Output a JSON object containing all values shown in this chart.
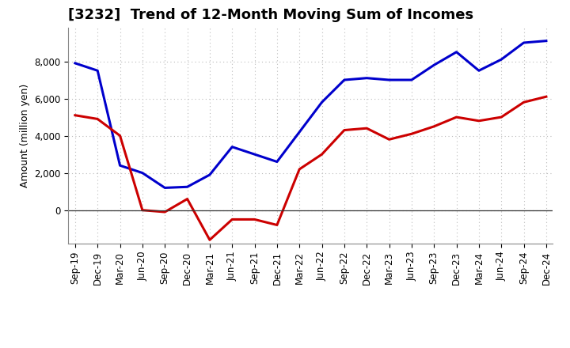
{
  "title": "[3232]  Trend of 12-Month Moving Sum of Incomes",
  "ylabel": "Amount (million yen)",
  "x_labels": [
    "Sep-19",
    "Dec-19",
    "Mar-20",
    "Jun-20",
    "Sep-20",
    "Dec-20",
    "Mar-21",
    "Jun-21",
    "Sep-21",
    "Dec-21",
    "Mar-22",
    "Jun-22",
    "Sep-22",
    "Dec-22",
    "Mar-23",
    "Jun-23",
    "Sep-23",
    "Dec-23",
    "Mar-24",
    "Jun-24",
    "Sep-24",
    "Dec-24"
  ],
  "ordinary_income": [
    7900,
    7500,
    2400,
    2000,
    1200,
    1250,
    1900,
    3400,
    3000,
    2600,
    4200,
    5800,
    7000,
    7100,
    7000,
    7000,
    7800,
    8500,
    7500,
    8100,
    9000,
    9100
  ],
  "net_income": [
    5100,
    4900,
    4000,
    0,
    -100,
    600,
    -1600,
    -500,
    -500,
    -800,
    2200,
    3000,
    4300,
    4400,
    3800,
    4100,
    4500,
    5000,
    4800,
    5000,
    5800,
    6100
  ],
  "ordinary_color": "#0000cc",
  "net_color": "#cc0000",
  "ylim_min": -1800,
  "ylim_max": 9800,
  "yticks": [
    0,
    2000,
    4000,
    6000,
    8000
  ],
  "grid_color": "#bbbbbb",
  "bg_color": "#ffffff",
  "plot_bg_color": "#f0f0f0",
  "line_width": 2.2,
  "title_fontsize": 13,
  "axis_fontsize": 9,
  "tick_fontsize": 8.5,
  "legend_fontsize": 10
}
